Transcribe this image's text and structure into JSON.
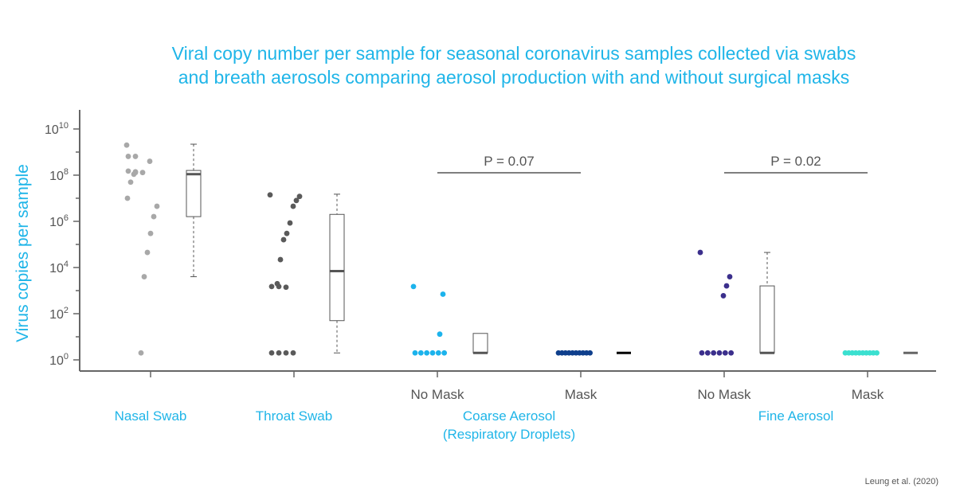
{
  "title_line1": "Viral copy number per sample for seasonal coronavirus samples collected via swabs",
  "title_line2": "and breath aerosols comparing aerosol production with and without surgical masks",
  "source": "Leung et al. (2020)",
  "colors": {
    "title": "#1fb5e8",
    "axis": "#666666",
    "nasal": "#a8a8a8",
    "throat": "#5a5a5a",
    "coarse_no_mask": "#1cb3ec",
    "coarse_mask": "#0f3f8c",
    "fine_no_mask": "#3b2f8c",
    "fine_mask": "#3be0d0"
  },
  "chart_data": {
    "type": "scatter",
    "ylabel": "Virus copies per sample",
    "y_scale": "log10",
    "ylim": [
      1,
      10000000000
    ],
    "yticks": [
      {
        "exp": 0,
        "base": "10",
        "sup": "0"
      },
      {
        "exp": 2,
        "base": "10",
        "sup": "2"
      },
      {
        "exp": 4,
        "base": "10",
        "sup": "4"
      },
      {
        "exp": 6,
        "base": "10",
        "sup": "6"
      },
      {
        "exp": 8,
        "base": "10",
        "sup": "8"
      },
      {
        "exp": 10,
        "base": "10",
        "sup": "10"
      }
    ],
    "groups": [
      {
        "label": "Nasal Swab",
        "sublabel": "",
        "color": "#a8a8a8",
        "points": [
          2000000000.0,
          650000000.0,
          650000000.0,
          400000000.0,
          150000000.0,
          140000000.0,
          130000000.0,
          130000000.0,
          110000000.0,
          50000000.0,
          10000000.0,
          4500000.0,
          1600000.0,
          300000.0,
          45000.0,
          4000.0,
          2
        ],
        "box": {
          "min": 4000.0,
          "q1": 1600000.0,
          "median": 110000000.0,
          "q3": 160000000.0,
          "max": 2200000000.0
        }
      },
      {
        "label": "Throat Swab",
        "sublabel": "",
        "color": "#5a5a5a",
        "points": [
          14000000.0,
          12000000.0,
          8000000.0,
          4500000.0,
          850000.0,
          300000.0,
          160000.0,
          22000.0,
          2000.0,
          1500.0,
          1500.0,
          1400.0,
          2,
          2,
          2,
          2
        ],
        "box": {
          "min": 2,
          "q1": 50,
          "median": 7000.0,
          "q3": 2000000.0,
          "max": 15000000.0
        }
      },
      {
        "label": "No Mask",
        "sublabel": "Coarse Aerosol",
        "color": "#1cb3ec",
        "points": [
          1500.0,
          700,
          13,
          2,
          2,
          2,
          2,
          2,
          2
        ],
        "box": {
          "min": 2,
          "q1": 2,
          "median": 2,
          "q3": 14,
          "max": 14
        }
      },
      {
        "label": "Mask",
        "sublabel": "Coarse Aerosol",
        "color": "#0f3f8c",
        "points": [
          2,
          2,
          2,
          2,
          2,
          2,
          2,
          2,
          2,
          2
        ],
        "box": {
          "min": 2,
          "q1": 2,
          "median": 2,
          "q3": 2,
          "max": 2
        }
      },
      {
        "label": "No Mask",
        "sublabel": "Fine Aerosol",
        "color": "#3b2f8c",
        "points": [
          45000.0,
          4000.0,
          1600.0,
          600,
          2,
          2,
          2,
          2,
          2,
          2
        ],
        "box": {
          "min": 2,
          "q1": 2,
          "median": 2,
          "q3": 1600.0,
          "max": 45000.0
        }
      },
      {
        "label": "Mask",
        "sublabel": "Fine Aerosol",
        "color": "#3be0d0",
        "points": [
          2,
          2,
          2,
          2,
          2,
          2,
          2,
          2,
          2,
          2
        ],
        "box": {
          "min": 2,
          "q1": 2,
          "median": 2,
          "q3": 2,
          "max": 2
        }
      }
    ],
    "category_labels": [
      {
        "text": "Nasal Swab"
      },
      {
        "text": "Throat Swab"
      },
      {
        "text": "Coarse Aerosol"
      },
      {
        "text": "(Respiratory Droplets)"
      },
      {
        "text": "Fine Aerosol"
      }
    ],
    "comparisons": [
      {
        "label": "P = 0.07",
        "between": [
          2,
          3
        ]
      },
      {
        "label": "P = 0.02",
        "between": [
          4,
          5
        ]
      }
    ]
  }
}
